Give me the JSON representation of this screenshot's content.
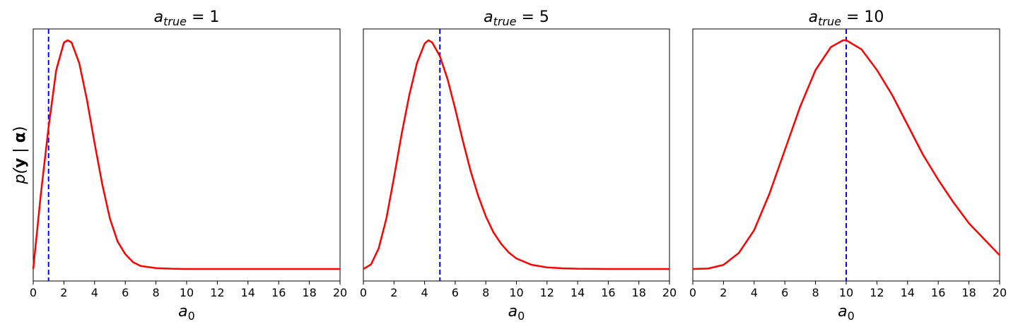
{
  "chart_data": [
    {
      "type": "line",
      "title": {
        "base": "a",
        "sub": "true",
        "rest": " = 1"
      },
      "xlabel": {
        "base": "a",
        "sub": "0"
      },
      "ylabel": {
        "pre": "p(",
        "bold": "y",
        "mid": " | ",
        "bold2": "α",
        "post": ")"
      },
      "xlim": [
        0,
        20
      ],
      "xticks": [
        0,
        2,
        4,
        6,
        8,
        10,
        12,
        14,
        16,
        18,
        20
      ],
      "grid": false,
      "y_ticks_shown": false,
      "series": [
        {
          "color": "#ff0000",
          "x": [
            0,
            0.5,
            1,
            1.5,
            2,
            2.25,
            2.5,
            3,
            3.5,
            4,
            4.5,
            5,
            5.5,
            6,
            6.5,
            7,
            8,
            9,
            10,
            12,
            14,
            16,
            18,
            20
          ],
          "y": [
            0.0,
            0.33,
            0.62,
            0.87,
            0.99,
            1.0,
            0.99,
            0.9,
            0.74,
            0.55,
            0.37,
            0.22,
            0.12,
            0.065,
            0.03,
            0.013,
            0.004,
            0.001,
            0,
            0,
            0,
            0,
            0,
            0
          ]
        }
      ],
      "vline": {
        "x": 1,
        "color": "#0000ff",
        "style": "dashed"
      }
    },
    {
      "type": "line",
      "title": {
        "base": "a",
        "sub": "true",
        "rest": " = 5"
      },
      "xlabel": {
        "base": "a",
        "sub": "0"
      },
      "xlim": [
        0,
        20
      ],
      "xticks": [
        0,
        2,
        4,
        6,
        8,
        10,
        12,
        14,
        16,
        18,
        20
      ],
      "grid": false,
      "y_ticks_shown": false,
      "series": [
        {
          "color": "#ff0000",
          "x": [
            0,
            0.5,
            1,
            1.5,
            2,
            2.5,
            3,
            3.5,
            4,
            4.25,
            4.5,
            5,
            5.5,
            6,
            6.5,
            7,
            7.5,
            8,
            8.5,
            9,
            9.5,
            10,
            11,
            12,
            13,
            14,
            16,
            18,
            20
          ],
          "y": [
            0.0,
            0.02,
            0.09,
            0.22,
            0.4,
            0.59,
            0.76,
            0.9,
            0.985,
            1.0,
            0.99,
            0.93,
            0.83,
            0.7,
            0.56,
            0.43,
            0.32,
            0.23,
            0.16,
            0.11,
            0.072,
            0.046,
            0.018,
            0.007,
            0.003,
            0.001,
            0,
            0,
            0
          ]
        }
      ],
      "vline": {
        "x": 5,
        "color": "#0000ff",
        "style": "dashed"
      }
    },
    {
      "type": "line",
      "title": {
        "base": "a",
        "sub": "true",
        "rest": " = 10"
      },
      "xlabel": {
        "base": "a",
        "sub": "0"
      },
      "xlim": [
        0,
        20
      ],
      "xticks": [
        0,
        2,
        4,
        6,
        8,
        10,
        12,
        14,
        16,
        18,
        20
      ],
      "grid": false,
      "y_ticks_shown": false,
      "series": [
        {
          "color": "#ff0000",
          "x": [
            0,
            1,
            2,
            3,
            4,
            5,
            6,
            7,
            8,
            9,
            9.8,
            10,
            11,
            12,
            13,
            14,
            15,
            16,
            17,
            18,
            19,
            20
          ],
          "y": [
            0.0,
            0.002,
            0.018,
            0.07,
            0.17,
            0.33,
            0.52,
            0.71,
            0.87,
            0.97,
            1.0,
            1.0,
            0.96,
            0.87,
            0.76,
            0.63,
            0.5,
            0.39,
            0.29,
            0.2,
            0.13,
            0.06
          ]
        }
      ],
      "vline": {
        "x": 10,
        "color": "#0000ff",
        "style": "dashed"
      }
    }
  ]
}
